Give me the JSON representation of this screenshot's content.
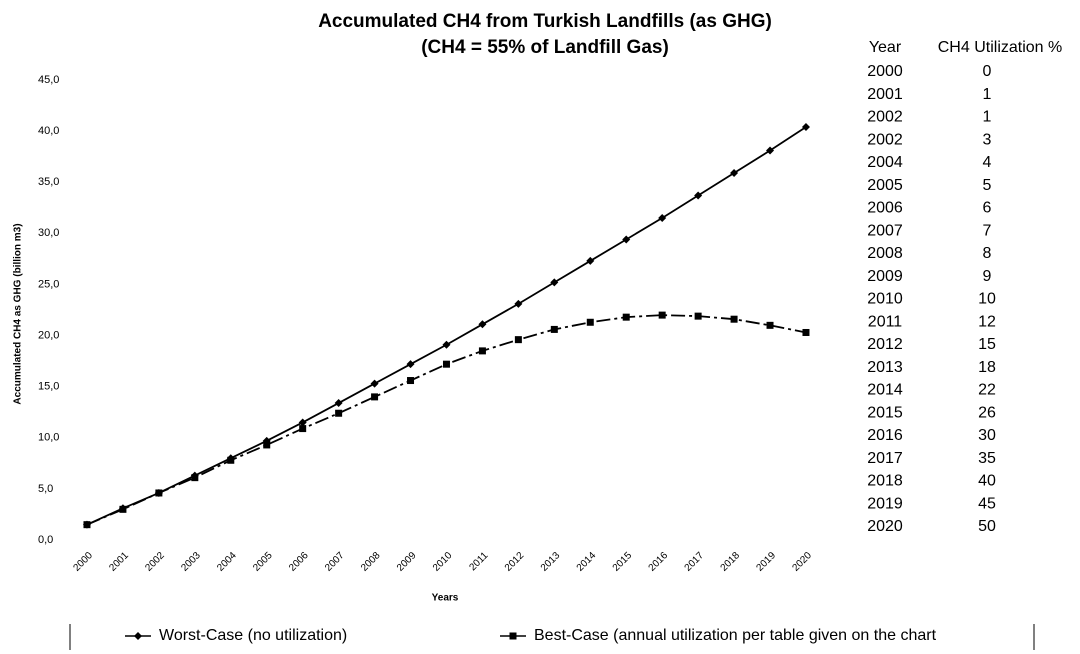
{
  "chart_data": {
    "type": "line",
    "title": "Accumulated CH4 from Turkish Landfills (as GHG)",
    "subtitle": "(CH4 = 55% of Landfill Gas)",
    "x_label": "Years",
    "y_label": "Accumulated CH4 as GHG (billion m3)",
    "categories": [
      "2000",
      "2001",
      "2002",
      "2003",
      "2004",
      "2005",
      "2006",
      "2007",
      "2008",
      "2009",
      "2010",
      "2011",
      "2012",
      "2013",
      "2014",
      "2015",
      "2016",
      "2017",
      "2018",
      "2019",
      "2020"
    ],
    "series": [
      {
        "name": "Worst-Case (no utilization)",
        "color": "#000000",
        "marker": "diamond",
        "values": [
          1.5,
          3.1,
          4.6,
          6.3,
          8.0,
          9.7,
          11.5,
          13.4,
          15.3,
          17.2,
          19.1,
          21.1,
          23.1,
          25.2,
          27.3,
          29.4,
          31.5,
          33.7,
          35.9,
          38.1,
          40.4
        ]
      },
      {
        "name": "Best-Case (annual utilization per table given on the chart",
        "color": "#000000",
        "marker": "square",
        "values": [
          1.5,
          3.0,
          4.6,
          6.1,
          7.8,
          9.3,
          10.9,
          12.4,
          14.0,
          15.6,
          17.2,
          18.5,
          19.6,
          20.6,
          21.3,
          21.8,
          22.0,
          21.9,
          21.6,
          21.0,
          20.3
        ]
      }
    ],
    "ylim": [
      0,
      45
    ],
    "yticks": [
      {
        "value": 0,
        "label": "0,0"
      },
      {
        "value": 5,
        "label": "5,0"
      },
      {
        "value": 10,
        "label": "10,0"
      },
      {
        "value": 15,
        "label": "15,0"
      },
      {
        "value": 20,
        "label": "20,0"
      },
      {
        "value": 25,
        "label": "25,0"
      },
      {
        "value": 30,
        "label": "30,0"
      },
      {
        "value": 35,
        "label": "35,0"
      },
      {
        "value": 40,
        "label": "40,0"
      },
      {
        "value": 45,
        "label": "45,0"
      }
    ],
    "grid": false,
    "legend": "bottom"
  },
  "table": {
    "headers": [
      "Year",
      "CH4 Utilization %"
    ],
    "rows": [
      [
        "2000",
        0
      ],
      [
        "2001",
        1
      ],
      [
        "2002",
        1
      ],
      [
        "2002",
        3
      ],
      [
        "2004",
        4
      ],
      [
        "2005",
        5
      ],
      [
        "2006",
        6
      ],
      [
        "2007",
        7
      ],
      [
        "2008",
        8
      ],
      [
        "2009",
        9
      ],
      [
        "2010",
        10
      ],
      [
        "2011",
        12
      ],
      [
        "2012",
        15
      ],
      [
        "2013",
        18
      ],
      [
        "2014",
        22
      ],
      [
        "2015",
        26
      ],
      [
        "2016",
        30
      ],
      [
        "2017",
        35
      ],
      [
        "2018",
        40
      ],
      [
        "2019",
        45
      ],
      [
        "2020",
        50
      ]
    ]
  }
}
